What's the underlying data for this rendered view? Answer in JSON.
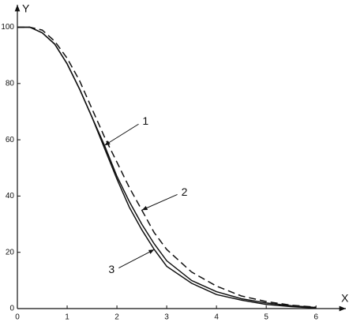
{
  "chart_data": {
    "type": "line",
    "x_label": "X",
    "y_label": "Y",
    "x": [
      0,
      0.25,
      0.5,
      0.75,
      1,
      1.25,
      1.5,
      1.75,
      2,
      2.25,
      2.5,
      2.75,
      3,
      3.5,
      4,
      4.5,
      5,
      5.5,
      6
    ],
    "series": [
      {
        "name": "1",
        "color": "#111111",
        "style": "solid",
        "values": [
          100,
          100,
          98,
          94,
          87,
          78,
          68,
          58,
          47,
          38,
          30,
          23,
          17,
          10,
          6,
          3.5,
          2,
          1,
          0.4
        ]
      },
      {
        "name": "2",
        "color": "#111111",
        "style": "dashed",
        "values": [
          100,
          100,
          99,
          95,
          89,
          81,
          71,
          61,
          52,
          43,
          35,
          27,
          21,
          13,
          8,
          4.5,
          2.5,
          1.2,
          0.5
        ]
      },
      {
        "name": "3",
        "color": "#111111",
        "style": "solid",
        "values": [
          100,
          100,
          98,
          94,
          87,
          78,
          68,
          57,
          46,
          36,
          28,
          21,
          15,
          9,
          5,
          3,
          1.5,
          0.7,
          0.2
        ]
      }
    ],
    "xlim": [
      0,
      6.6
    ],
    "ylim": [
      0,
      108
    ],
    "xticks": [
      0,
      1,
      2,
      3,
      4,
      5,
      6
    ],
    "yticks": [
      0,
      20,
      40,
      60,
      80,
      100
    ],
    "grid": false
  }
}
